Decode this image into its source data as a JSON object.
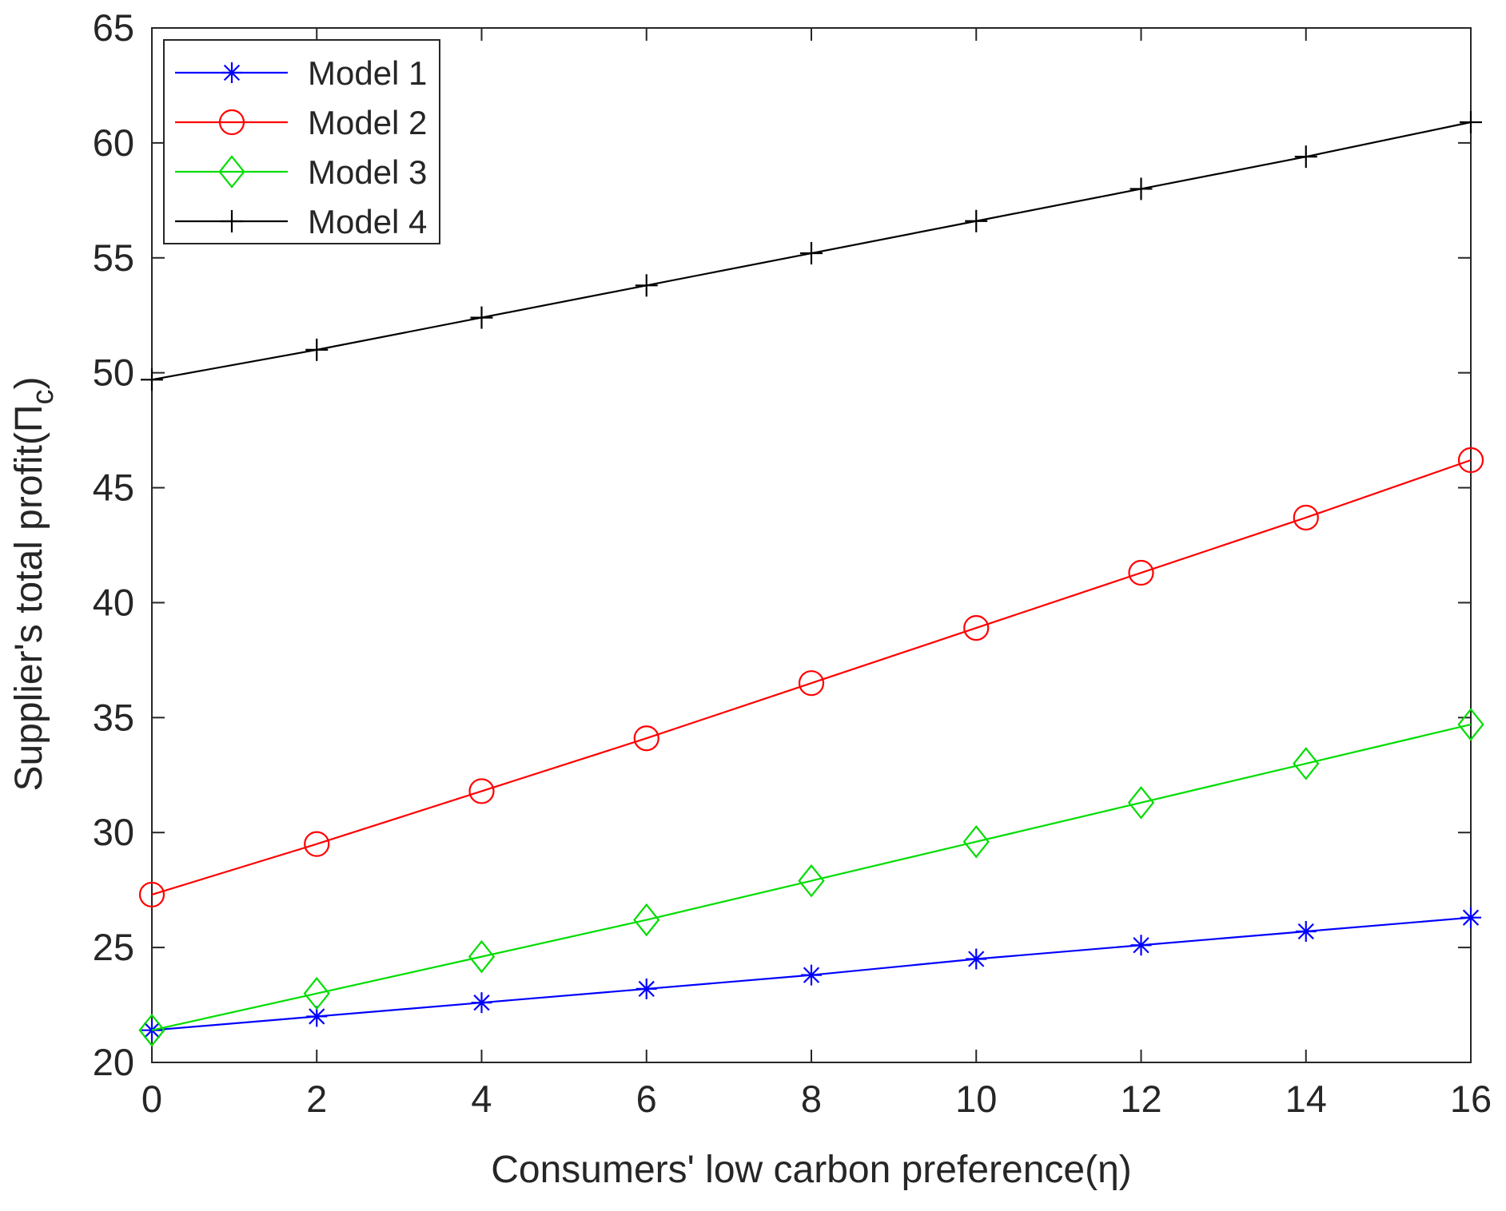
{
  "chart_data": {
    "type": "line",
    "title": "",
    "xlabel": "Consumers' low carbon preference(η)",
    "ylabel": "Supplier's total profit(Π",
    "ylabel_subscript": "c",
    "ylabel_close": ")",
    "xlim": [
      0,
      16
    ],
    "ylim": [
      20,
      65
    ],
    "xticks": [
      0,
      2,
      4,
      6,
      8,
      10,
      12,
      14,
      16
    ],
    "yticks": [
      20,
      25,
      30,
      35,
      40,
      45,
      50,
      55,
      60,
      65
    ],
    "grid": false,
    "legend_position": "top-left",
    "x": [
      0,
      2,
      4,
      6,
      8,
      10,
      12,
      14,
      16
    ],
    "series": [
      {
        "name": "Model 1",
        "color": "#0000ff",
        "marker": "asterisk",
        "values": [
          21.4,
          22.0,
          22.6,
          23.2,
          23.8,
          24.5,
          25.1,
          25.7,
          26.3
        ]
      },
      {
        "name": "Model 2",
        "color": "#ff0000",
        "marker": "circle",
        "values": [
          27.3,
          29.5,
          31.8,
          34.1,
          36.5,
          38.9,
          41.3,
          43.7,
          46.2
        ]
      },
      {
        "name": "Model 3",
        "color": "#00dd00",
        "marker": "diamond",
        "values": [
          21.4,
          23.0,
          24.6,
          26.2,
          27.9,
          29.6,
          31.3,
          33.0,
          34.7
        ]
      },
      {
        "name": "Model 4",
        "color": "#000000",
        "marker": "plus",
        "values": [
          49.7,
          51.0,
          52.4,
          53.8,
          55.2,
          56.6,
          58.0,
          59.4,
          60.9
        ]
      }
    ]
  }
}
